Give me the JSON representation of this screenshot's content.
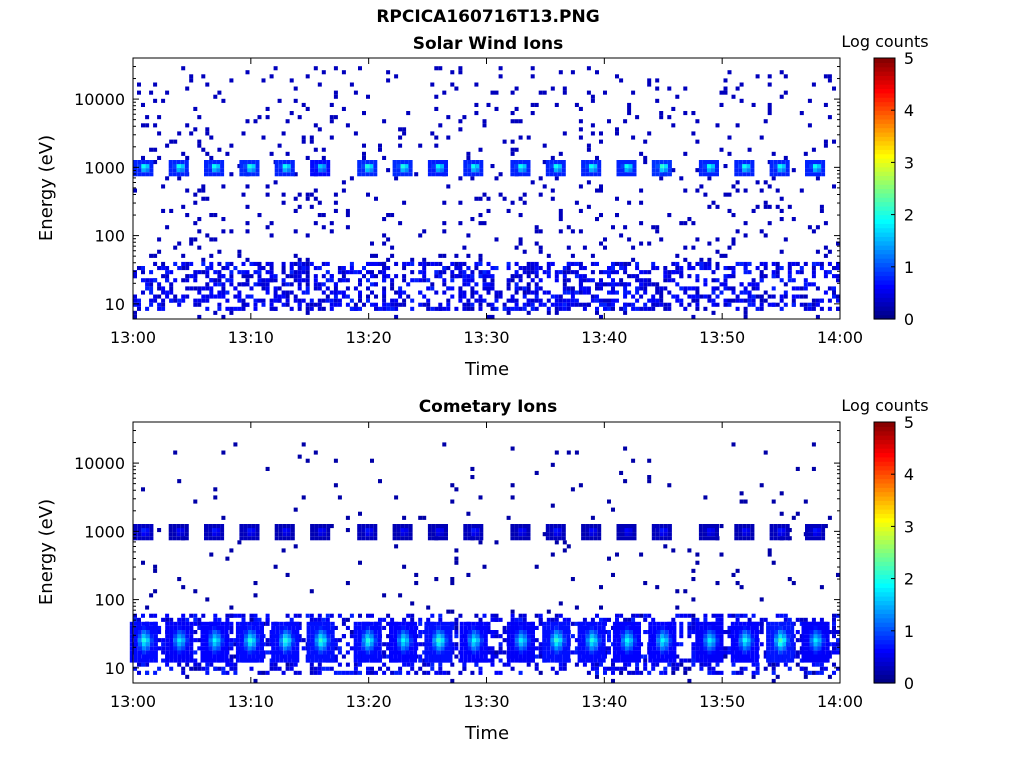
{
  "figure_title": "RPCICA160716T13.PNG",
  "chart_data": [
    {
      "type": "heatmap",
      "title": "Solar Wind Ions",
      "xlabel": "Time",
      "ylabel": "Energy (eV)",
      "y_scale": "log",
      "ylim": [
        6,
        40000
      ],
      "xlim": [
        "13:00",
        "14:00"
      ],
      "x_ticks": [
        "13:00",
        "13:10",
        "13:20",
        "13:30",
        "13:40",
        "13:50",
        "14:00"
      ],
      "y_ticks": [
        "10",
        "100",
        "1000",
        "10000"
      ],
      "colorbar": {
        "label": "Log counts",
        "range": [
          0,
          5
        ],
        "ticks": [
          "0",
          "1",
          "2",
          "3",
          "4",
          "5"
        ],
        "colormap": "jet"
      },
      "peak_bursts": [
        {
          "t": "13:01",
          "energy": 1000,
          "log_counts": 2.4
        },
        {
          "t": "13:04",
          "energy": 1000,
          "log_counts": 2.4
        },
        {
          "t": "13:07",
          "energy": 1000,
          "log_counts": 2.4
        },
        {
          "t": "13:10",
          "energy": 1000,
          "log_counts": 2.5
        },
        {
          "t": "13:13",
          "energy": 1000,
          "log_counts": 2.4
        },
        {
          "t": "13:16",
          "energy": 1000,
          "log_counts": 2.0
        },
        {
          "t": "13:20",
          "energy": 1000,
          "log_counts": 2.5
        },
        {
          "t": "13:23",
          "energy": 1000,
          "log_counts": 2.5
        },
        {
          "t": "13:26",
          "energy": 1000,
          "log_counts": 2.3
        },
        {
          "t": "13:29",
          "energy": 1000,
          "log_counts": 2.4
        },
        {
          "t": "13:33",
          "energy": 1000,
          "log_counts": 2.4
        },
        {
          "t": "13:36",
          "energy": 1000,
          "log_counts": 2.4
        },
        {
          "t": "13:39",
          "energy": 1000,
          "log_counts": 2.4
        },
        {
          "t": "13:42",
          "energy": 1000,
          "log_counts": 2.4
        },
        {
          "t": "13:45",
          "energy": 1000,
          "log_counts": 2.6
        },
        {
          "t": "13:49",
          "energy": 1000,
          "log_counts": 2.4
        },
        {
          "t": "13:52",
          "energy": 1000,
          "log_counts": 2.4
        },
        {
          "t": "13:55",
          "energy": 1000,
          "log_counts": 2.4
        },
        {
          "t": "13:58",
          "energy": 1000,
          "log_counts": 2.4
        }
      ],
      "background": {
        "energy_range": [
          6,
          30000
        ],
        "log_counts": 0.3
      },
      "low_energy_band": {
        "energy_range": [
          8,
          40
        ],
        "log_counts": 0.8
      }
    },
    {
      "type": "heatmap",
      "title": "Cometary Ions",
      "xlabel": "Time",
      "ylabel": "Energy (eV)",
      "y_scale": "log",
      "ylim": [
        6,
        40000
      ],
      "xlim": [
        "13:00",
        "14:00"
      ],
      "x_ticks": [
        "13:00",
        "13:10",
        "13:20",
        "13:30",
        "13:40",
        "13:50",
        "14:00"
      ],
      "y_ticks": [
        "10",
        "100",
        "1000",
        "10000"
      ],
      "colorbar": {
        "label": "Log counts",
        "range": [
          0,
          5
        ],
        "ticks": [
          "0",
          "1",
          "2",
          "3",
          "4",
          "5"
        ],
        "colormap": "jet"
      },
      "peak_bursts": [
        {
          "t": "13:01",
          "energy": 1000,
          "log_counts": 1.0
        },
        {
          "t": "13:04",
          "energy": 1000,
          "log_counts": 0.8
        },
        {
          "t": "13:07",
          "energy": 1000,
          "log_counts": 0.9
        },
        {
          "t": "13:10",
          "energy": 1000,
          "log_counts": 0.9
        },
        {
          "t": "13:13",
          "energy": 1000,
          "log_counts": 0.8
        },
        {
          "t": "13:16",
          "energy": 1000,
          "log_counts": 0.8
        },
        {
          "t": "13:20",
          "energy": 1000,
          "log_counts": 0.9
        },
        {
          "t": "13:23",
          "energy": 1000,
          "log_counts": 0.8
        },
        {
          "t": "13:26",
          "energy": 1000,
          "log_counts": 0.8
        },
        {
          "t": "13:29",
          "energy": 1000,
          "log_counts": 0.9
        },
        {
          "t": "13:33",
          "energy": 1000,
          "log_counts": 0.8
        },
        {
          "t": "13:36",
          "energy": 1000,
          "log_counts": 0.9
        },
        {
          "t": "13:39",
          "energy": 1000,
          "log_counts": 0.8
        },
        {
          "t": "13:42",
          "energy": 1000,
          "log_counts": 0.8
        },
        {
          "t": "13:45",
          "energy": 1000,
          "log_counts": 0.9
        },
        {
          "t": "13:49",
          "energy": 1000,
          "log_counts": 0.8
        },
        {
          "t": "13:52",
          "energy": 1000,
          "log_counts": 0.8
        },
        {
          "t": "13:55",
          "energy": 1000,
          "log_counts": 0.9
        },
        {
          "t": "13:58",
          "energy": 1000,
          "log_counts": 0.9
        }
      ],
      "low_energy_bursts": [
        {
          "t": "13:01",
          "energy": 25,
          "log_counts": 2.0
        },
        {
          "t": "13:04",
          "energy": 25,
          "log_counts": 1.8
        },
        {
          "t": "13:07",
          "energy": 25,
          "log_counts": 1.9
        },
        {
          "t": "13:10",
          "energy": 25,
          "log_counts": 2.0
        },
        {
          "t": "13:13",
          "energy": 25,
          "log_counts": 2.0
        },
        {
          "t": "13:16",
          "energy": 25,
          "log_counts": 2.1
        },
        {
          "t": "13:20",
          "energy": 25,
          "log_counts": 2.0
        },
        {
          "t": "13:23",
          "energy": 25,
          "log_counts": 1.9
        },
        {
          "t": "13:26",
          "energy": 25,
          "log_counts": 2.1
        },
        {
          "t": "13:29",
          "energy": 25,
          "log_counts": 1.9
        },
        {
          "t": "13:33",
          "energy": 25,
          "log_counts": 1.8
        },
        {
          "t": "13:36",
          "energy": 25,
          "log_counts": 2.1
        },
        {
          "t": "13:39",
          "energy": 25,
          "log_counts": 2.0
        },
        {
          "t": "13:42",
          "energy": 25,
          "log_counts": 1.9
        },
        {
          "t": "13:45",
          "energy": 25,
          "log_counts": 1.9
        },
        {
          "t": "13:49",
          "energy": 25,
          "log_counts": 1.8
        },
        {
          "t": "13:52",
          "energy": 25,
          "log_counts": 1.9
        },
        {
          "t": "13:55",
          "energy": 25,
          "log_counts": 2.2
        },
        {
          "t": "13:58",
          "energy": 25,
          "log_counts": 1.8
        }
      ],
      "background": {
        "energy_range": [
          6,
          20000
        ],
        "log_counts": 0.2
      },
      "low_energy_band": {
        "energy_range": [
          8,
          60
        ],
        "log_counts": 0.8
      }
    }
  ]
}
